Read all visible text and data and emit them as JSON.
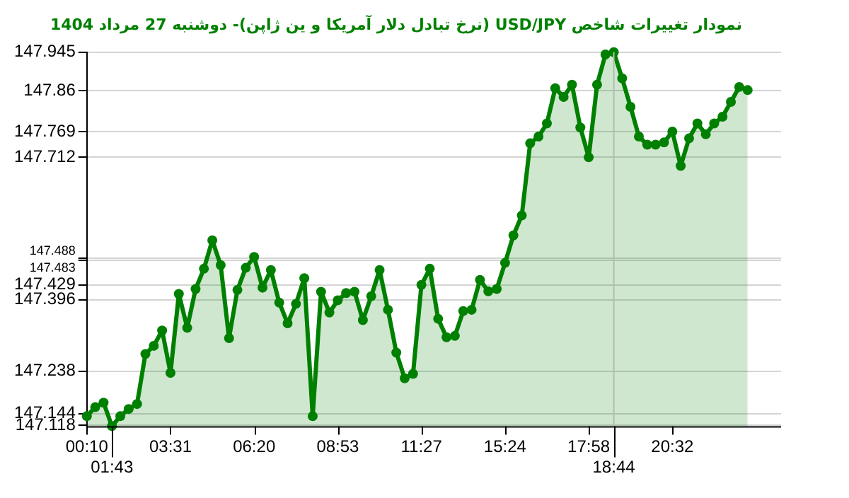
{
  "chart_data": {
    "type": "area",
    "title": "نمودار تغییرات شاخص USD/JPY (نرخ تبادل دلار آمریکا و ین ژاپن)- دوشنبه  27 مرداد 1404",
    "categories": [
      "00:10",
      null,
      null,
      "01:43",
      null,
      null,
      null,
      null,
      null,
      null,
      "03:31",
      null,
      null,
      null,
      null,
      null,
      null,
      null,
      null,
      null,
      "06:20",
      null,
      null,
      null,
      null,
      null,
      null,
      null,
      null,
      null,
      "08:53",
      null,
      null,
      null,
      null,
      null,
      null,
      null,
      null,
      null,
      "11:27",
      null,
      null,
      null,
      null,
      null,
      null,
      null,
      null,
      null,
      "15:24",
      null,
      null,
      null,
      null,
      null,
      null,
      null,
      null,
      null,
      "17:58",
      null,
      null,
      "18:44",
      null,
      null,
      null,
      null,
      null,
      null,
      "20:32",
      null,
      null,
      null,
      null,
      null,
      null,
      null,
      null,
      null,
      null,
      null,
      null,
      null
    ],
    "series": [
      {
        "color": "#008000",
        "values": [
          147.138,
          147.158,
          147.168,
          147.116,
          147.138,
          147.154,
          147.165,
          147.276,
          147.294,
          147.328,
          147.234,
          147.409,
          147.334,
          147.42,
          147.465,
          147.528,
          147.473,
          147.311,
          147.418,
          147.467,
          147.491,
          147.423,
          147.462,
          147.39,
          147.344,
          147.387,
          147.444,
          147.138,
          147.414,
          147.368,
          147.395,
          147.411,
          147.414,
          147.351,
          147.404,
          147.462,
          147.374,
          147.279,
          147.222,
          147.232,
          147.429,
          147.465,
          147.354,
          147.313,
          147.316,
          147.371,
          147.374,
          147.44,
          147.415,
          147.42,
          147.478,
          147.539,
          147.583,
          147.743,
          147.758,
          147.787,
          147.865,
          147.846,
          147.873,
          147.778,
          147.712,
          147.873,
          147.94,
          147.945,
          147.887,
          147.824,
          147.758,
          147.74,
          147.74,
          147.745,
          147.769,
          147.693,
          147.754,
          147.787,
          147.763,
          147.787,
          147.802,
          147.835,
          147.868,
          147.861,
          null,
          null,
          null,
          null
        ]
      }
    ],
    "ylim": [
      147.116,
      147.945
    ],
    "yticks": [
      147.945,
      147.86,
      147.769,
      147.712,
      147.488,
      147.483,
      147.429,
      147.396,
      147.238,
      147.144,
      147.118
    ],
    "ref_lines": [
      {
        "axis": "x",
        "value": "18:44",
        "color": "#b4bcb4"
      }
    ],
    "grid": "y",
    "legend": false,
    "marker": "circle",
    "line_style": "solid"
  }
}
